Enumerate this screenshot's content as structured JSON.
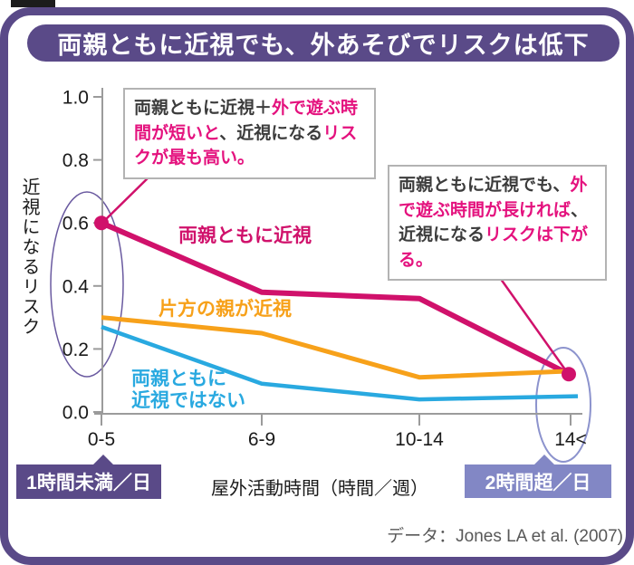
{
  "title": "両親ともに近視でも、外あそびでリスクは低下",
  "colors": {
    "accent": "#5a4a88",
    "periwinkle": "#8287c5",
    "highlight": "#e4127e",
    "axis": "#9b9b9b",
    "ellipse_left": "#6a5aa0",
    "ellipse_right": "#8c93cd",
    "ink": "#1a1a1a"
  },
  "chart_data": {
    "type": "line",
    "title": "両親ともに近視でも、外あそびでリスクは低下",
    "xlabel": "屋外活動時間（時間／週）",
    "ylabel": "近視になるリスク",
    "ylim": [
      0.0,
      1.0
    ],
    "yticks": [
      0.0,
      0.2,
      0.4,
      0.6,
      0.8,
      1.0
    ],
    "categories": [
      "0-5",
      "6-9",
      "10-14",
      "14<"
    ],
    "series": [
      {
        "name": "両親ともに近視",
        "color": "#d0116b",
        "values": [
          0.6,
          0.38,
          0.36,
          0.12
        ],
        "markers": [
          0,
          3
        ],
        "label_lines": [
          "両親ともに近視"
        ]
      },
      {
        "name": "片方の親が近視",
        "color": "#f7a11a",
        "values": [
          0.3,
          0.25,
          0.11,
          0.13
        ],
        "markers": [],
        "label_lines": [
          "片方の親が近視"
        ]
      },
      {
        "name": "両親ともに近視ではない",
        "color": "#29a9e0",
        "values": [
          0.27,
          0.09,
          0.04,
          0.05
        ],
        "markers": [],
        "label_lines": [
          "両親ともに",
          "近視ではない"
        ]
      }
    ]
  },
  "callouts": [
    {
      "runs": [
        {
          "t": "両親ともに近視＋",
          "hl": false
        },
        {
          "t": "外で遊ぶ時間が短いと",
          "hl": true
        },
        {
          "t": "、近視になる",
          "hl": false
        },
        {
          "t": "リスクが最も高い。",
          "hl": true
        }
      ]
    },
    {
      "runs": [
        {
          "t": "両親ともに近視でも、",
          "hl": false
        },
        {
          "t": "外で遊ぶ時間が長ければ",
          "hl": true
        },
        {
          "t": "、近視になる",
          "hl": false
        },
        {
          "t": "リスクは下がる。",
          "hl": true
        }
      ]
    }
  ],
  "badges": {
    "left": "1時間未満／日",
    "right": "2時間超／日"
  },
  "source": "データ：Jones LA et al. (2007)"
}
